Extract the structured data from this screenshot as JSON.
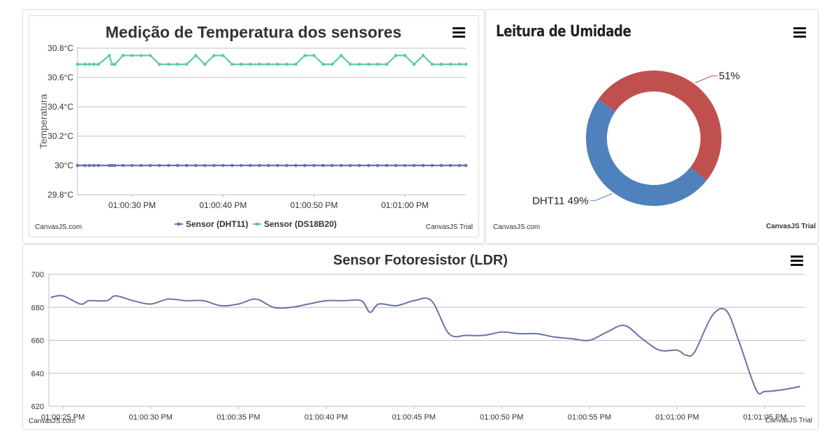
{
  "temp_panel": {
    "menu_icon": "hamburger-menu-icon",
    "watermark_left": "CanvasJS.com",
    "watermark_right": "CanvasJS Trial"
  },
  "humidity_panel": {
    "menu_icon": "hamburger-menu-icon",
    "watermark_left": "CanvasJS.com",
    "watermark_right": "CanvasJS Trial"
  },
  "ldr_panel": {
    "menu_icon": "hamburger-menu-icon",
    "watermark_left": "CanvasJS.com",
    "watermark_right": "CanvasJS Trial"
  },
  "chart_data": [
    {
      "type": "line",
      "title": "Medição de Temperatura dos sensores",
      "ylabel": "Temperatura",
      "xlabel": "",
      "ylim": [
        29.8,
        30.8
      ],
      "y_ticks": [
        "29.8°C",
        "30°C",
        "30.2°C",
        "30.4°C",
        "30.6°C",
        "30.8°C"
      ],
      "x_ticks": [
        "01:00:30 PM",
        "01:00:40 PM",
        "01:00:50 PM",
        "01:01:00 PM"
      ],
      "x_tick_seconds": [
        30,
        40,
        50,
        60
      ],
      "xlim_seconds": [
        24,
        66.7
      ],
      "grid": true,
      "legend": "bottom",
      "series": [
        {
          "name": "Sensor (DHT11)",
          "color": "#6673a8",
          "x_seconds": [
            24,
            24.8,
            25.3,
            25.8,
            26.3,
            27.5,
            27.8,
            28.1,
            29,
            30,
            31,
            32,
            33,
            34,
            35,
            36,
            37,
            38,
            39,
            40,
            41,
            42,
            43,
            44,
            45,
            46,
            47,
            48,
            49,
            50,
            51,
            52,
            53,
            54,
            55,
            56,
            57,
            58,
            59,
            60,
            61,
            62,
            63,
            64,
            65,
            66,
            66.7
          ],
          "values": [
            30,
            30,
            30,
            30,
            30,
            30,
            30,
            30,
            30,
            30,
            30,
            30,
            30,
            30,
            30,
            30,
            30,
            30,
            30,
            30,
            30,
            30,
            30,
            30,
            30,
            30,
            30,
            30,
            30,
            30,
            30,
            30,
            30,
            30,
            30,
            30,
            30,
            30,
            30,
            30,
            30,
            30,
            30,
            30,
            30,
            30,
            30
          ]
        },
        {
          "name": "Sensor (DS18B20)",
          "color": "#5ecc9e",
          "x_seconds": [
            24,
            24.8,
            25.3,
            25.8,
            26.3,
            27.5,
            27.8,
            28.1,
            29,
            30,
            31,
            32,
            33,
            34,
            35,
            36,
            37,
            38,
            39,
            40,
            41,
            42,
            43,
            44,
            45,
            46,
            47,
            48,
            49,
            50,
            51,
            52,
            53,
            54,
            55,
            56,
            57,
            58,
            59,
            60,
            61,
            62,
            63,
            64,
            65,
            66,
            66.7
          ],
          "values": [
            30.69,
            30.69,
            30.69,
            30.69,
            30.69,
            30.75,
            30.69,
            30.69,
            30.75,
            30.75,
            30.75,
            30.75,
            30.69,
            30.69,
            30.69,
            30.69,
            30.75,
            30.69,
            30.75,
            30.75,
            30.69,
            30.69,
            30.69,
            30.69,
            30.69,
            30.69,
            30.69,
            30.69,
            30.75,
            30.75,
            30.69,
            30.69,
            30.75,
            30.69,
            30.69,
            30.69,
            30.69,
            30.69,
            30.75,
            30.75,
            30.69,
            30.75,
            30.69,
            30.69,
            30.69,
            30.69,
            30.69
          ]
        }
      ]
    },
    {
      "type": "pie",
      "title": "Leitura de Umidade",
      "legend": "none",
      "slices": [
        {
          "label": "",
          "percent_label": "51%",
          "value": 51,
          "color": "#c0504e"
        },
        {
          "label": "DHT11",
          "percent_label": "49%",
          "value": 49,
          "color": "#4f81bc"
        }
      ]
    },
    {
      "type": "line",
      "title": "Sensor Fotoresistor (LDR)",
      "xlabel": "",
      "ylabel": "",
      "ylim": [
        620,
        700
      ],
      "y_ticks": [
        "620",
        "640",
        "660",
        "680",
        "700"
      ],
      "x_ticks": [
        "01:00:25 PM",
        "01:00:30 PM",
        "01:00:35 PM",
        "01:00:40 PM",
        "01:00:45 PM",
        "01:00:50 PM",
        "01:00:55 PM",
        "01:01:00 PM",
        "01:01:05 PM"
      ],
      "x_tick_seconds": [
        25,
        30,
        35,
        40,
        45,
        50,
        55,
        60,
        65
      ],
      "xlim_seconds": [
        24.2,
        67.3
      ],
      "grid": true,
      "legend": "none",
      "series": [
        {
          "name": "",
          "color": "#6673a8",
          "x_seconds": [
            24.3,
            25,
            26,
            26.5,
            27.5,
            28,
            29,
            30,
            31,
            32,
            33,
            34,
            35,
            36,
            37,
            38,
            39,
            40,
            41,
            42,
            42.5,
            43,
            44,
            45,
            46,
            47,
            48,
            49,
            50,
            51,
            52,
            53,
            54,
            55,
            56,
            57,
            58,
            59,
            60,
            60.5,
            61,
            62,
            62.8,
            63.5,
            64.5,
            65,
            66,
            67
          ],
          "values": [
            686,
            687,
            682,
            684,
            684,
            687,
            684,
            682,
            685,
            684,
            684,
            681,
            682,
            685,
            680,
            680,
            682,
            684,
            684,
            684,
            677,
            682,
            681,
            684,
            684,
            664,
            663,
            663,
            665,
            664,
            664,
            662,
            661,
            660,
            665,
            669,
            661,
            654,
            654,
            651,
            653,
            675,
            678,
            660,
            630,
            629,
            630,
            632
          ]
        }
      ]
    }
  ]
}
